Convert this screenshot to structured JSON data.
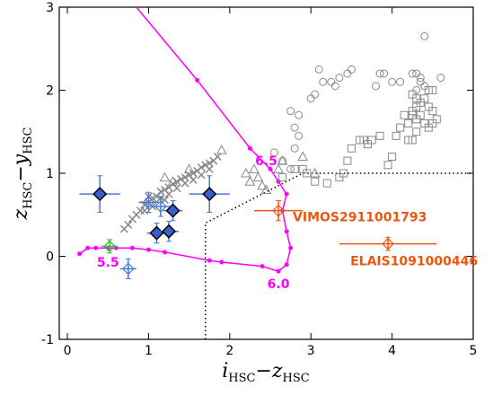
{
  "chart_data": {
    "type": "scatter",
    "x_label": [
      "i",
      "HSC",
      "−",
      "z",
      "HSC"
    ],
    "y_label": [
      "z",
      "HSC",
      "−",
      "y",
      "HSC"
    ],
    "xlim": [
      -0.1,
      5
    ],
    "ylim": [
      -1,
      3
    ],
    "xticks": [
      0,
      1,
      2,
      3,
      4,
      5
    ],
    "yticks": [
      -1,
      0,
      1,
      2,
      3
    ],
    "boundary": {
      "color": "#000000",
      "x": [
        1.7,
        1.7,
        2.9,
        5
      ],
      "y": [
        -1,
        0.4,
        1.0,
        1.0
      ]
    },
    "track": {
      "color": "#ff00ff",
      "x": [
        0.15,
        0.25,
        0.35,
        0.5,
        0.6,
        0.8,
        1.0,
        1.2,
        1.75,
        1.9,
        2.4,
        2.6,
        2.7,
        2.75,
        2.7,
        2.65,
        2.7,
        2.6,
        2.5,
        2.25,
        1.6,
        0.85
      ],
      "y": [
        0.03,
        0.1,
        0.1,
        0.1,
        0.1,
        0.1,
        0.08,
        0.05,
        -0.05,
        -0.07,
        -0.12,
        -0.18,
        -0.1,
        0.1,
        0.3,
        0.55,
        0.75,
        0.9,
        1.05,
        1.3,
        2.12,
        3.0
      ],
      "labels": [
        {
          "text": "5.5",
          "x": 0.5,
          "y": -0.07
        },
        {
          "text": "6.0",
          "x": 2.6,
          "y": -0.33
        },
        {
          "text": "6.5",
          "x": 2.45,
          "y": 1.15
        }
      ]
    },
    "series": [
      {
        "marker": "circle",
        "color": "#888888",
        "x": [
          2.55,
          2.65,
          2.75,
          2.8,
          2.8,
          2.75,
          2.85,
          2.85,
          3.0,
          3.05,
          3.15,
          3.1,
          3.25,
          3.3,
          3.35,
          3.45,
          3.5,
          3.8,
          3.85,
          3.9,
          4.0,
          4.1,
          4.25,
          4.3,
          4.35,
          4.4,
          4.6,
          4.4,
          4.3,
          4.35
        ],
        "y": [
          1.25,
          1.15,
          1.05,
          1.3,
          1.55,
          1.75,
          1.7,
          1.45,
          1.9,
          1.95,
          2.1,
          2.25,
          2.1,
          2.05,
          2.15,
          2.2,
          2.25,
          2.05,
          2.2,
          2.2,
          2.1,
          2.1,
          2.2,
          2.2,
          2.15,
          2.05,
          2.15,
          2.65,
          2.0,
          2.1
        ]
      },
      {
        "marker": "square",
        "color": "#888888",
        "x": [
          2.65,
          2.8,
          2.9,
          2.95,
          3.05,
          3.2,
          3.35,
          3.4,
          3.45,
          3.5,
          3.6,
          3.65,
          3.7,
          3.75,
          3.85,
          4.0,
          3.95,
          4.05,
          4.1,
          4.15,
          4.2,
          4.25,
          4.3,
          4.35,
          4.4,
          4.45,
          4.5,
          4.5,
          4.55,
          4.45,
          4.4,
          4.35,
          4.3,
          4.25,
          4.3,
          4.45,
          4.5,
          4.25,
          4.3,
          4.2,
          4.25
        ],
        "y": [
          0.95,
          1.05,
          1.05,
          1.0,
          0.9,
          0.88,
          0.95,
          1.0,
          1.15,
          1.3,
          1.4,
          1.4,
          1.35,
          1.4,
          1.45,
          1.2,
          1.1,
          1.45,
          1.55,
          1.7,
          1.6,
          1.75,
          1.8,
          1.85,
          1.9,
          1.8,
          1.75,
          1.6,
          1.65,
          1.55,
          1.6,
          1.7,
          1.65,
          1.7,
          1.5,
          2.0,
          2.0,
          1.95,
          1.9,
          1.4,
          1.4
        ]
      },
      {
        "marker": "triangle",
        "color": "#888888",
        "x": [
          1.9,
          1.5,
          2.25,
          2.35,
          2.4,
          2.45,
          2.6,
          2.65,
          2.9,
          3.05,
          2.2,
          2.3,
          1.2,
          1.3
        ],
        "y": [
          1.28,
          1.05,
          0.9,
          0.95,
          0.85,
          0.8,
          1.05,
          1.15,
          1.2,
          1.0,
          1.0,
          1.05,
          0.95,
          0.9
        ]
      },
      {
        "marker": "cross",
        "color": "#888888",
        "x": [
          0.7,
          0.75,
          0.8,
          0.85,
          0.9,
          0.95,
          1.0,
          1.05,
          1.1,
          1.15,
          1.2,
          1.25,
          1.3,
          1.35,
          1.4,
          1.45,
          1.5,
          1.55,
          1.6,
          1.65,
          1.7,
          1.75,
          1.8,
          1.85,
          0.95,
          1.05,
          1.15,
          1.25,
          1.35,
          1.45,
          1.55,
          1.65,
          1.75,
          1.0,
          1.2
        ],
        "y": [
          0.33,
          0.38,
          0.45,
          0.5,
          0.55,
          0.62,
          0.65,
          0.7,
          0.72,
          0.78,
          0.8,
          0.83,
          0.87,
          0.9,
          0.93,
          0.95,
          0.98,
          1.0,
          1.03,
          1.07,
          1.1,
          1.12,
          1.15,
          1.2,
          0.55,
          0.6,
          0.7,
          0.75,
          0.82,
          0.88,
          0.92,
          0.98,
          1.05,
          0.72,
          0.68
        ]
      }
    ],
    "error_series": [
      {
        "marker": "diamond",
        "fill": "#3a5fcd",
        "color": "#000000",
        "bar_color": "#4a78d8",
        "x": [
          0.4,
          1.1,
          1.25,
          1.3,
          1.75
        ],
        "y": [
          0.75,
          0.28,
          0.3,
          0.55,
          0.75
        ],
        "xerr": [
          0.25,
          0.12,
          0.12,
          0.12,
          0.25
        ],
        "yerr": [
          0.22,
          0.12,
          0.12,
          0.12,
          0.22
        ]
      },
      {
        "marker": "open-diamond",
        "fill": "none",
        "color": "#4a78d8",
        "bar_color": "#4a78d8",
        "x": [
          1.0,
          1.15,
          0.75
        ],
        "y": [
          0.65,
          0.6,
          -0.15
        ],
        "xerr": [
          0.12,
          0.12,
          0.1
        ],
        "yerr": [
          0.12,
          0.12,
          0.12
        ]
      },
      {
        "marker": "open-diamond",
        "fill": "none",
        "color": "#33bb33",
        "bar_color": "#33bb33",
        "x": [
          0.52
        ],
        "y": [
          0.12
        ],
        "xerr": [
          0.1
        ],
        "yerr": [
          0.08
        ]
      },
      {
        "marker": "open-diamond",
        "fill": "none",
        "color": "#ee5511",
        "bar_color": "#ee5511",
        "x": [
          2.6,
          3.95
        ],
        "y": [
          0.55,
          0.15
        ],
        "xerr": [
          0.3,
          0.6
        ],
        "yerr": [
          0.12,
          0.08
        ],
        "labels": [
          "VIMOS2911001793",
          "ELAIS1091000446"
        ]
      }
    ]
  }
}
